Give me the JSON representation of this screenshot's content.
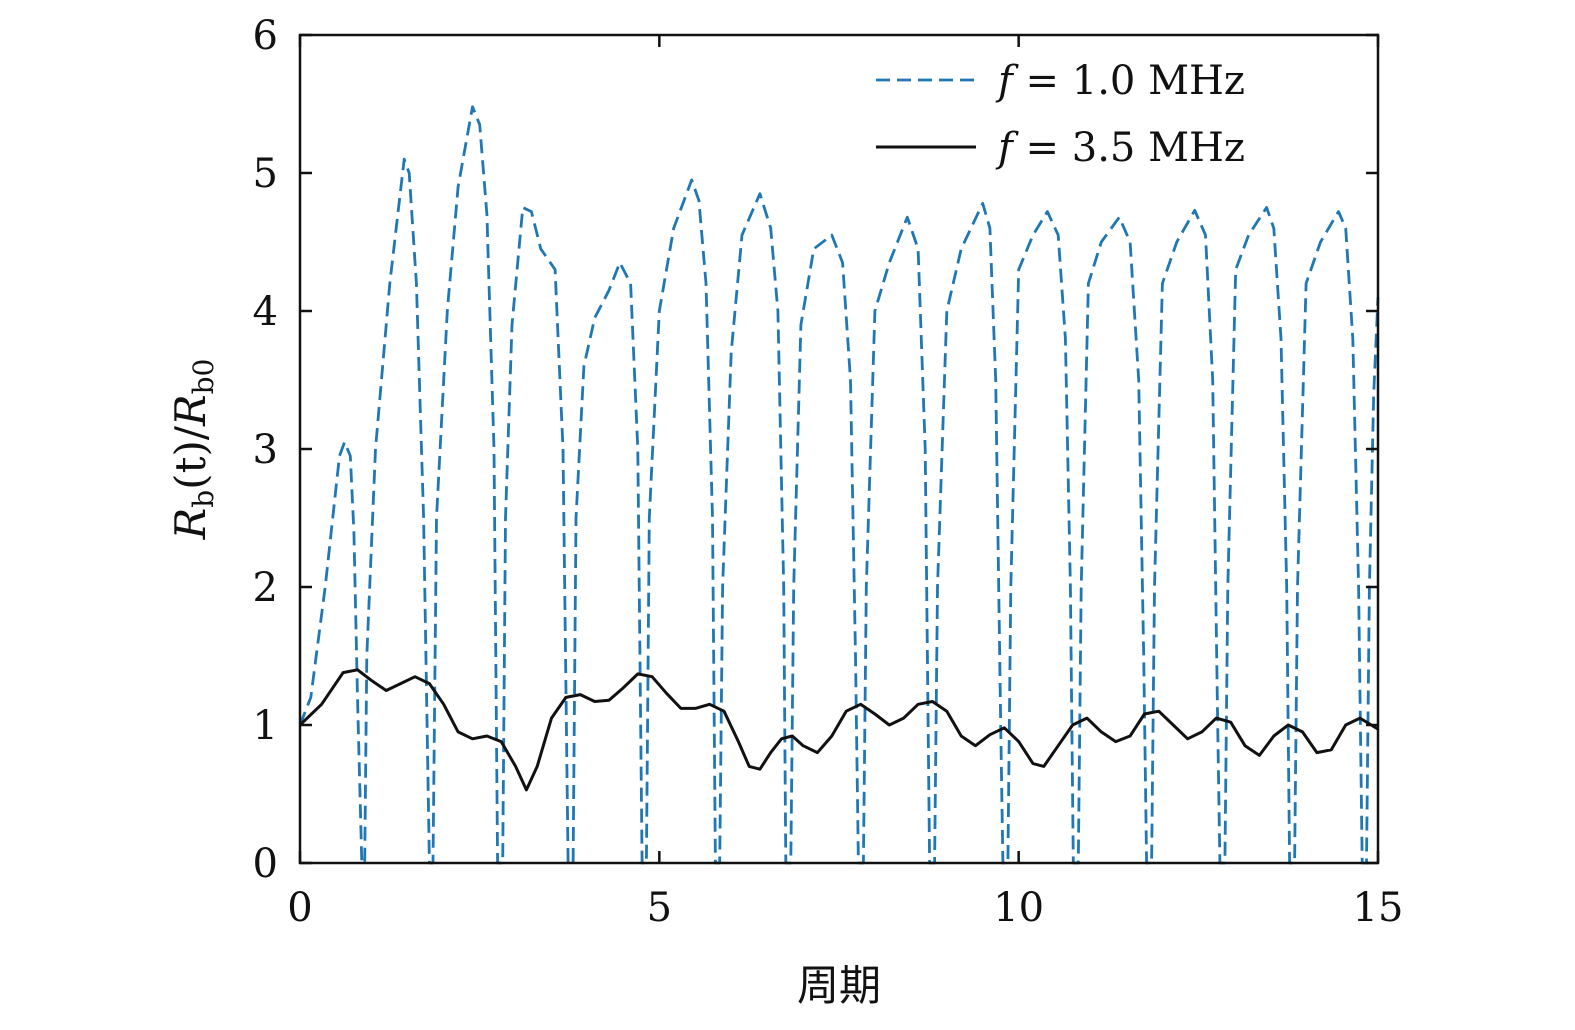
{
  "chart_data": {
    "type": "line",
    "xlabel": "周期",
    "ylabel": "R_b(t)/R_b0",
    "ylabel_parts": {
      "r1": "R",
      "sub1": "b",
      "mid": "(t)/",
      "r2": "R",
      "sub2": "b0"
    },
    "xlim": [
      0,
      15
    ],
    "ylim": [
      0,
      6
    ],
    "xticks": [
      "0",
      "5",
      "10",
      "15"
    ],
    "yticks": [
      "0",
      "1",
      "2",
      "3",
      "4",
      "5",
      "6"
    ],
    "grid": false,
    "legend_position": "top-right",
    "colors": {
      "dashed": "#1f77b4",
      "solid": "#111111"
    },
    "series": [
      {
        "name": "f = 1.0 MHz",
        "legend_parts": {
          "var": "f",
          "eq": " = 1.0 MHz"
        },
        "style": "dashed",
        "points": [
          [
            0.0,
            1.0
          ],
          [
            0.15,
            1.2
          ],
          [
            0.35,
            2.0
          ],
          [
            0.55,
            2.95
          ],
          [
            0.62,
            3.05
          ],
          [
            0.7,
            2.95
          ],
          [
            0.75,
            2.4
          ],
          [
            0.8,
            1.2
          ],
          [
            0.86,
            0.0
          ],
          [
            0.9,
            0.0
          ],
          [
            0.93,
            1.5
          ],
          [
            1.05,
            3.0
          ],
          [
            1.25,
            4.2
          ],
          [
            1.45,
            5.1
          ],
          [
            1.52,
            5.0
          ],
          [
            1.62,
            4.2
          ],
          [
            1.72,
            2.5
          ],
          [
            1.8,
            0.0
          ],
          [
            1.85,
            0.0
          ],
          [
            1.9,
            2.5
          ],
          [
            2.05,
            4.0
          ],
          [
            2.2,
            4.9
          ],
          [
            2.4,
            5.48
          ],
          [
            2.5,
            5.35
          ],
          [
            2.6,
            4.7
          ],
          [
            2.7,
            3.0
          ],
          [
            2.75,
            0.0
          ],
          [
            2.82,
            0.0
          ],
          [
            2.86,
            2.5
          ],
          [
            2.95,
            3.9
          ],
          [
            3.1,
            4.75
          ],
          [
            3.22,
            4.72
          ],
          [
            3.35,
            4.45
          ],
          [
            3.55,
            4.3
          ],
          [
            3.66,
            3.0
          ],
          [
            3.73,
            0.0
          ],
          [
            3.8,
            0.0
          ],
          [
            3.84,
            2.5
          ],
          [
            3.95,
            3.6
          ],
          [
            4.1,
            3.95
          ],
          [
            4.3,
            4.15
          ],
          [
            4.45,
            4.35
          ],
          [
            4.6,
            4.2
          ],
          [
            4.7,
            3.0
          ],
          [
            4.76,
            0.0
          ],
          [
            4.82,
            0.0
          ],
          [
            4.86,
            2.5
          ],
          [
            5.0,
            4.0
          ],
          [
            5.2,
            4.6
          ],
          [
            5.45,
            4.95
          ],
          [
            5.55,
            4.8
          ],
          [
            5.65,
            4.2
          ],
          [
            5.74,
            2.5
          ],
          [
            5.78,
            0.0
          ],
          [
            5.84,
            0.0
          ],
          [
            5.88,
            2.0
          ],
          [
            6.0,
            3.7
          ],
          [
            6.15,
            4.55
          ],
          [
            6.4,
            4.85
          ],
          [
            6.55,
            4.6
          ],
          [
            6.65,
            4.0
          ],
          [
            6.73,
            2.0
          ],
          [
            6.76,
            0.0
          ],
          [
            6.83,
            0.0
          ],
          [
            6.87,
            2.0
          ],
          [
            6.97,
            3.9
          ],
          [
            7.15,
            4.45
          ],
          [
            7.4,
            4.55
          ],
          [
            7.55,
            4.35
          ],
          [
            7.66,
            3.5
          ],
          [
            7.73,
            1.5
          ],
          [
            7.77,
            0.0
          ],
          [
            7.84,
            0.0
          ],
          [
            7.88,
            2.0
          ],
          [
            8.0,
            4.0
          ],
          [
            8.2,
            4.35
          ],
          [
            8.45,
            4.68
          ],
          [
            8.6,
            4.45
          ],
          [
            8.7,
            3.0
          ],
          [
            8.76,
            0.0
          ],
          [
            8.83,
            0.0
          ],
          [
            8.87,
            2.0
          ],
          [
            9.0,
            4.0
          ],
          [
            9.2,
            4.45
          ],
          [
            9.5,
            4.78
          ],
          [
            9.6,
            4.6
          ],
          [
            9.68,
            3.5
          ],
          [
            9.75,
            1.0
          ],
          [
            9.78,
            0.0
          ],
          [
            9.85,
            0.0
          ],
          [
            9.89,
            2.0
          ],
          [
            10.0,
            4.3
          ],
          [
            10.2,
            4.55
          ],
          [
            10.4,
            4.72
          ],
          [
            10.55,
            4.55
          ],
          [
            10.65,
            3.8
          ],
          [
            10.72,
            2.0
          ],
          [
            10.76,
            0.0
          ],
          [
            10.83,
            0.0
          ],
          [
            10.87,
            2.0
          ],
          [
            10.97,
            4.2
          ],
          [
            11.15,
            4.5
          ],
          [
            11.4,
            4.68
          ],
          [
            11.55,
            4.5
          ],
          [
            11.67,
            3.5
          ],
          [
            11.74,
            1.5
          ],
          [
            11.78,
            0.0
          ],
          [
            11.85,
            0.0
          ],
          [
            11.89,
            2.0
          ],
          [
            12.0,
            4.2
          ],
          [
            12.2,
            4.5
          ],
          [
            12.45,
            4.73
          ],
          [
            12.6,
            4.55
          ],
          [
            12.7,
            3.5
          ],
          [
            12.77,
            1.0
          ],
          [
            12.8,
            0.0
          ],
          [
            12.87,
            0.0
          ],
          [
            12.91,
            2.0
          ],
          [
            13.02,
            4.3
          ],
          [
            13.2,
            4.55
          ],
          [
            13.45,
            4.75
          ],
          [
            13.55,
            4.6
          ],
          [
            13.65,
            3.8
          ],
          [
            13.73,
            2.0
          ],
          [
            13.77,
            0.0
          ],
          [
            13.84,
            0.0
          ],
          [
            13.88,
            2.0
          ],
          [
            14.0,
            4.2
          ],
          [
            14.2,
            4.5
          ],
          [
            14.45,
            4.72
          ],
          [
            14.55,
            4.6
          ],
          [
            14.65,
            3.8
          ],
          [
            14.73,
            2.0
          ],
          [
            14.78,
            0.0
          ],
          [
            14.84,
            0.0
          ],
          [
            14.88,
            2.0
          ],
          [
            14.94,
            3.4
          ],
          [
            15.0,
            4.1
          ]
        ]
      },
      {
        "name": "f = 3.5 MHz",
        "legend_parts": {
          "var": "f",
          "eq": " = 3.5 MHz"
        },
        "style": "solid",
        "points": [
          [
            0.0,
            1.0
          ],
          [
            0.3,
            1.15
          ],
          [
            0.6,
            1.38
          ],
          [
            0.8,
            1.4
          ],
          [
            1.0,
            1.32
          ],
          [
            1.2,
            1.25
          ],
          [
            1.4,
            1.3
          ],
          [
            1.6,
            1.35
          ],
          [
            1.8,
            1.3
          ],
          [
            2.0,
            1.15
          ],
          [
            2.2,
            0.95
          ],
          [
            2.4,
            0.9
          ],
          [
            2.6,
            0.92
          ],
          [
            2.8,
            0.88
          ],
          [
            3.0,
            0.7
          ],
          [
            3.15,
            0.53
          ],
          [
            3.3,
            0.7
          ],
          [
            3.5,
            1.05
          ],
          [
            3.7,
            1.2
          ],
          [
            3.9,
            1.22
          ],
          [
            4.1,
            1.17
          ],
          [
            4.3,
            1.18
          ],
          [
            4.5,
            1.27
          ],
          [
            4.7,
            1.37
          ],
          [
            4.9,
            1.35
          ],
          [
            5.1,
            1.23
          ],
          [
            5.3,
            1.12
          ],
          [
            5.5,
            1.12
          ],
          [
            5.7,
            1.15
          ],
          [
            5.9,
            1.1
          ],
          [
            6.1,
            0.88
          ],
          [
            6.25,
            0.7
          ],
          [
            6.4,
            0.68
          ],
          [
            6.55,
            0.8
          ],
          [
            6.7,
            0.9
          ],
          [
            6.85,
            0.92
          ],
          [
            7.0,
            0.85
          ],
          [
            7.2,
            0.8
          ],
          [
            7.4,
            0.92
          ],
          [
            7.6,
            1.1
          ],
          [
            7.8,
            1.15
          ],
          [
            8.0,
            1.08
          ],
          [
            8.2,
            1.0
          ],
          [
            8.4,
            1.05
          ],
          [
            8.6,
            1.15
          ],
          [
            8.8,
            1.17
          ],
          [
            9.0,
            1.1
          ],
          [
            9.2,
            0.92
          ],
          [
            9.4,
            0.85
          ],
          [
            9.6,
            0.93
          ],
          [
            9.8,
            0.98
          ],
          [
            10.0,
            0.88
          ],
          [
            10.2,
            0.72
          ],
          [
            10.35,
            0.7
          ],
          [
            10.55,
            0.85
          ],
          [
            10.75,
            1.0
          ],
          [
            10.95,
            1.05
          ],
          [
            11.15,
            0.95
          ],
          [
            11.35,
            0.88
          ],
          [
            11.55,
            0.92
          ],
          [
            11.75,
            1.08
          ],
          [
            11.95,
            1.1
          ],
          [
            12.15,
            1.0
          ],
          [
            12.35,
            0.9
          ],
          [
            12.55,
            0.95
          ],
          [
            12.75,
            1.05
          ],
          [
            12.95,
            1.02
          ],
          [
            13.15,
            0.85
          ],
          [
            13.35,
            0.78
          ],
          [
            13.55,
            0.92
          ],
          [
            13.75,
            1.0
          ],
          [
            13.95,
            0.95
          ],
          [
            14.15,
            0.8
          ],
          [
            14.35,
            0.82
          ],
          [
            14.55,
            1.0
          ],
          [
            14.75,
            1.05
          ],
          [
            15.0,
            0.97
          ]
        ]
      }
    ]
  }
}
